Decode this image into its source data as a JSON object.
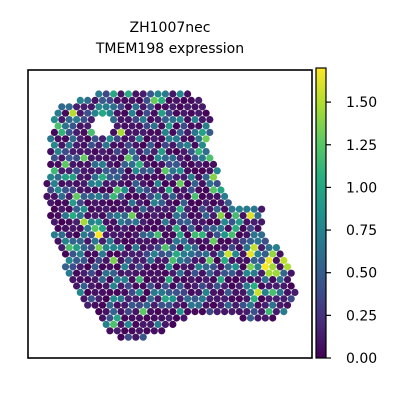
{
  "chart_data": {
    "type": "scatter",
    "title": "ZH1007nec",
    "subtitle": "TMEM198 expression",
    "xlabel": "",
    "ylabel": "",
    "colormap": "viridis",
    "colorbar": {
      "range": [
        0,
        1.7
      ],
      "ticks": [
        "0.00",
        "0.25",
        "0.50",
        "0.75",
        "1.00",
        "1.25",
        "1.50"
      ]
    },
    "grid": false,
    "axes_visible": false,
    "colors": {
      "low": "#440154",
      "mid": "#21918c",
      "high": "#fde725"
    }
  }
}
